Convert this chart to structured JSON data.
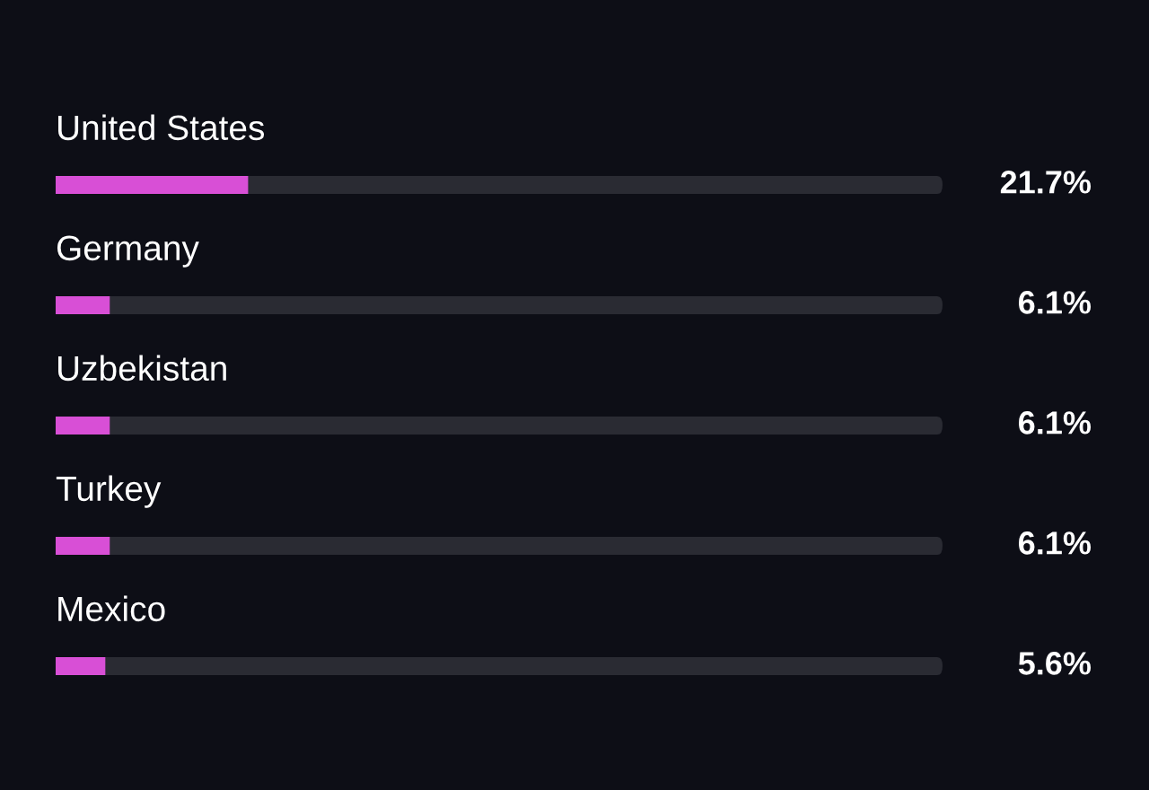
{
  "chart_data": {
    "type": "bar",
    "orientation": "horizontal",
    "categories": [
      "United States",
      "Germany",
      "Uzbekistan",
      "Turkey",
      "Mexico"
    ],
    "values": [
      21.7,
      6.1,
      6.1,
      6.1,
      5.6
    ],
    "value_labels": [
      "21.7%",
      "6.1%",
      "6.1%",
      "6.1%",
      "5.6%"
    ],
    "color": "#d84fd6",
    "xlim": [
      0,
      100
    ]
  }
}
